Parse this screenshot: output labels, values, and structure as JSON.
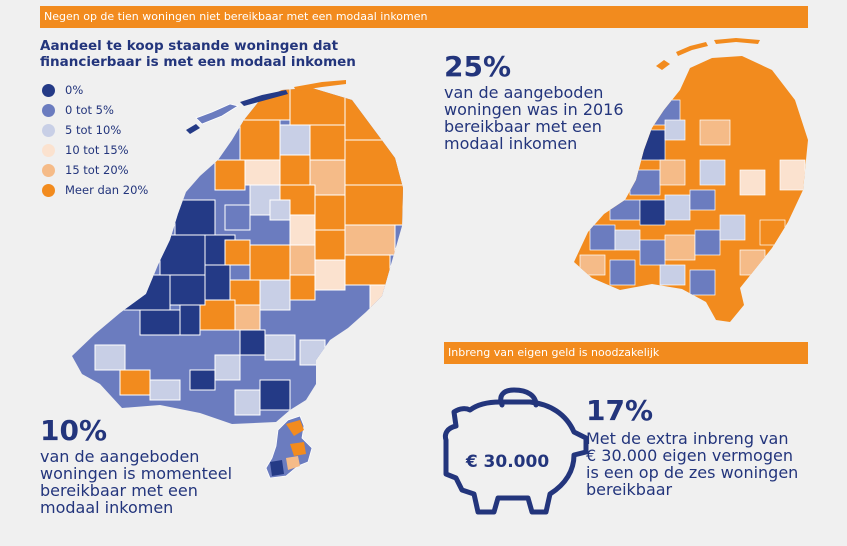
{
  "header": {
    "banner": "Negen op de tien woningen niet bereikbaar met een modaal inkomen"
  },
  "legend": {
    "title_line1": "Aandeel te koop staande woningen dat",
    "title_line2": "financierbaar is met een modaal inkomen",
    "items": [
      {
        "label": "0%",
        "color": "#243a86"
      },
      {
        "label": "0 tot 5%",
        "color": "#6b7cbf"
      },
      {
        "label": "5 tot 10%",
        "color": "#c8cfe6"
      },
      {
        "label": "10 tot 15%",
        "color": "#fbe2cf"
      },
      {
        "label": "15 tot 20%",
        "color": "#f5bb88"
      },
      {
        "label": "Meer dan 20%",
        "color": "#f28b1e"
      }
    ]
  },
  "stat_2016": {
    "value": "25%",
    "lines": [
      "van de aangeboden",
      "woningen was in 2016",
      "bereikbaar met een",
      "modaal inkomen"
    ]
  },
  "stat_now": {
    "value": "10%",
    "lines": [
      "van de aangeboden",
      "woningen is momenteel",
      "bereikbaar met een",
      "modaal inkomen"
    ]
  },
  "savings": {
    "banner": "Inbreng van eigen geld is noodzakelijk",
    "amount": "€ 30.000",
    "value": "17%",
    "lines": [
      "Met de extra inbreng van",
      "€ 30.000 eigen vermogen",
      "is een op de zes woningen",
      "bereikbaar"
    ]
  },
  "colors": {
    "navy": "#23357c",
    "orange": "#f28b1e"
  }
}
